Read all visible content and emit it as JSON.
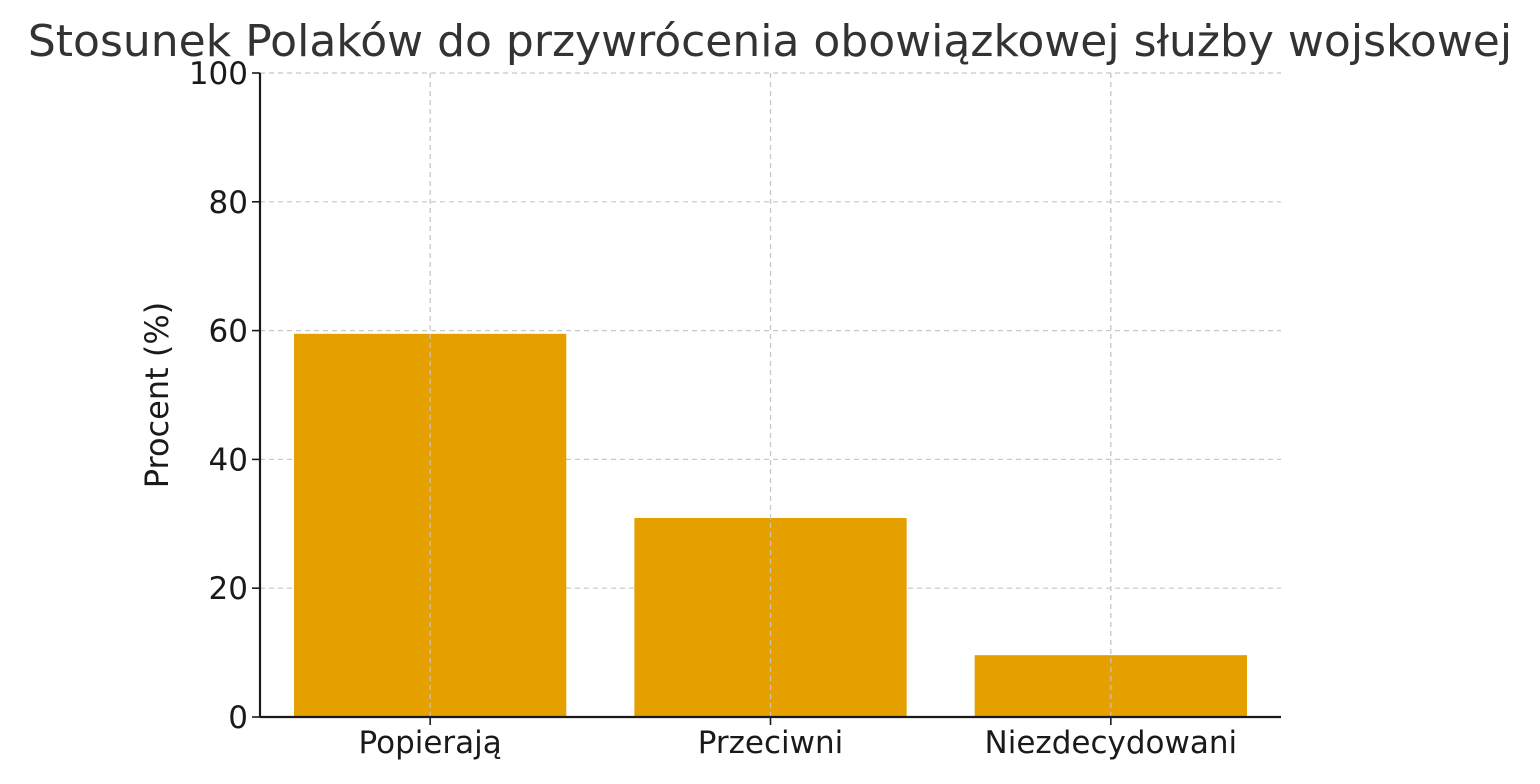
{
  "chart_data": {
    "type": "bar",
    "title": "Stosunek Polaków do przywrócenia obowiązkowej służby wojskowej",
    "xlabel": "",
    "ylabel": "Procent (%)",
    "categories": [
      "Popierają",
      "Przeciwni",
      "Niezdecydowani"
    ],
    "values": [
      59.5,
      30.9,
      9.6
    ],
    "ylim": [
      0,
      100
    ],
    "yticks": [
      "0",
      "20",
      "40",
      "60",
      "80",
      "100"
    ],
    "grid": true,
    "grid_style": "dashed",
    "bar_color": "#E5A000",
    "text_color": "#1a1a1a",
    "grid_color": "#c8c8c8"
  }
}
